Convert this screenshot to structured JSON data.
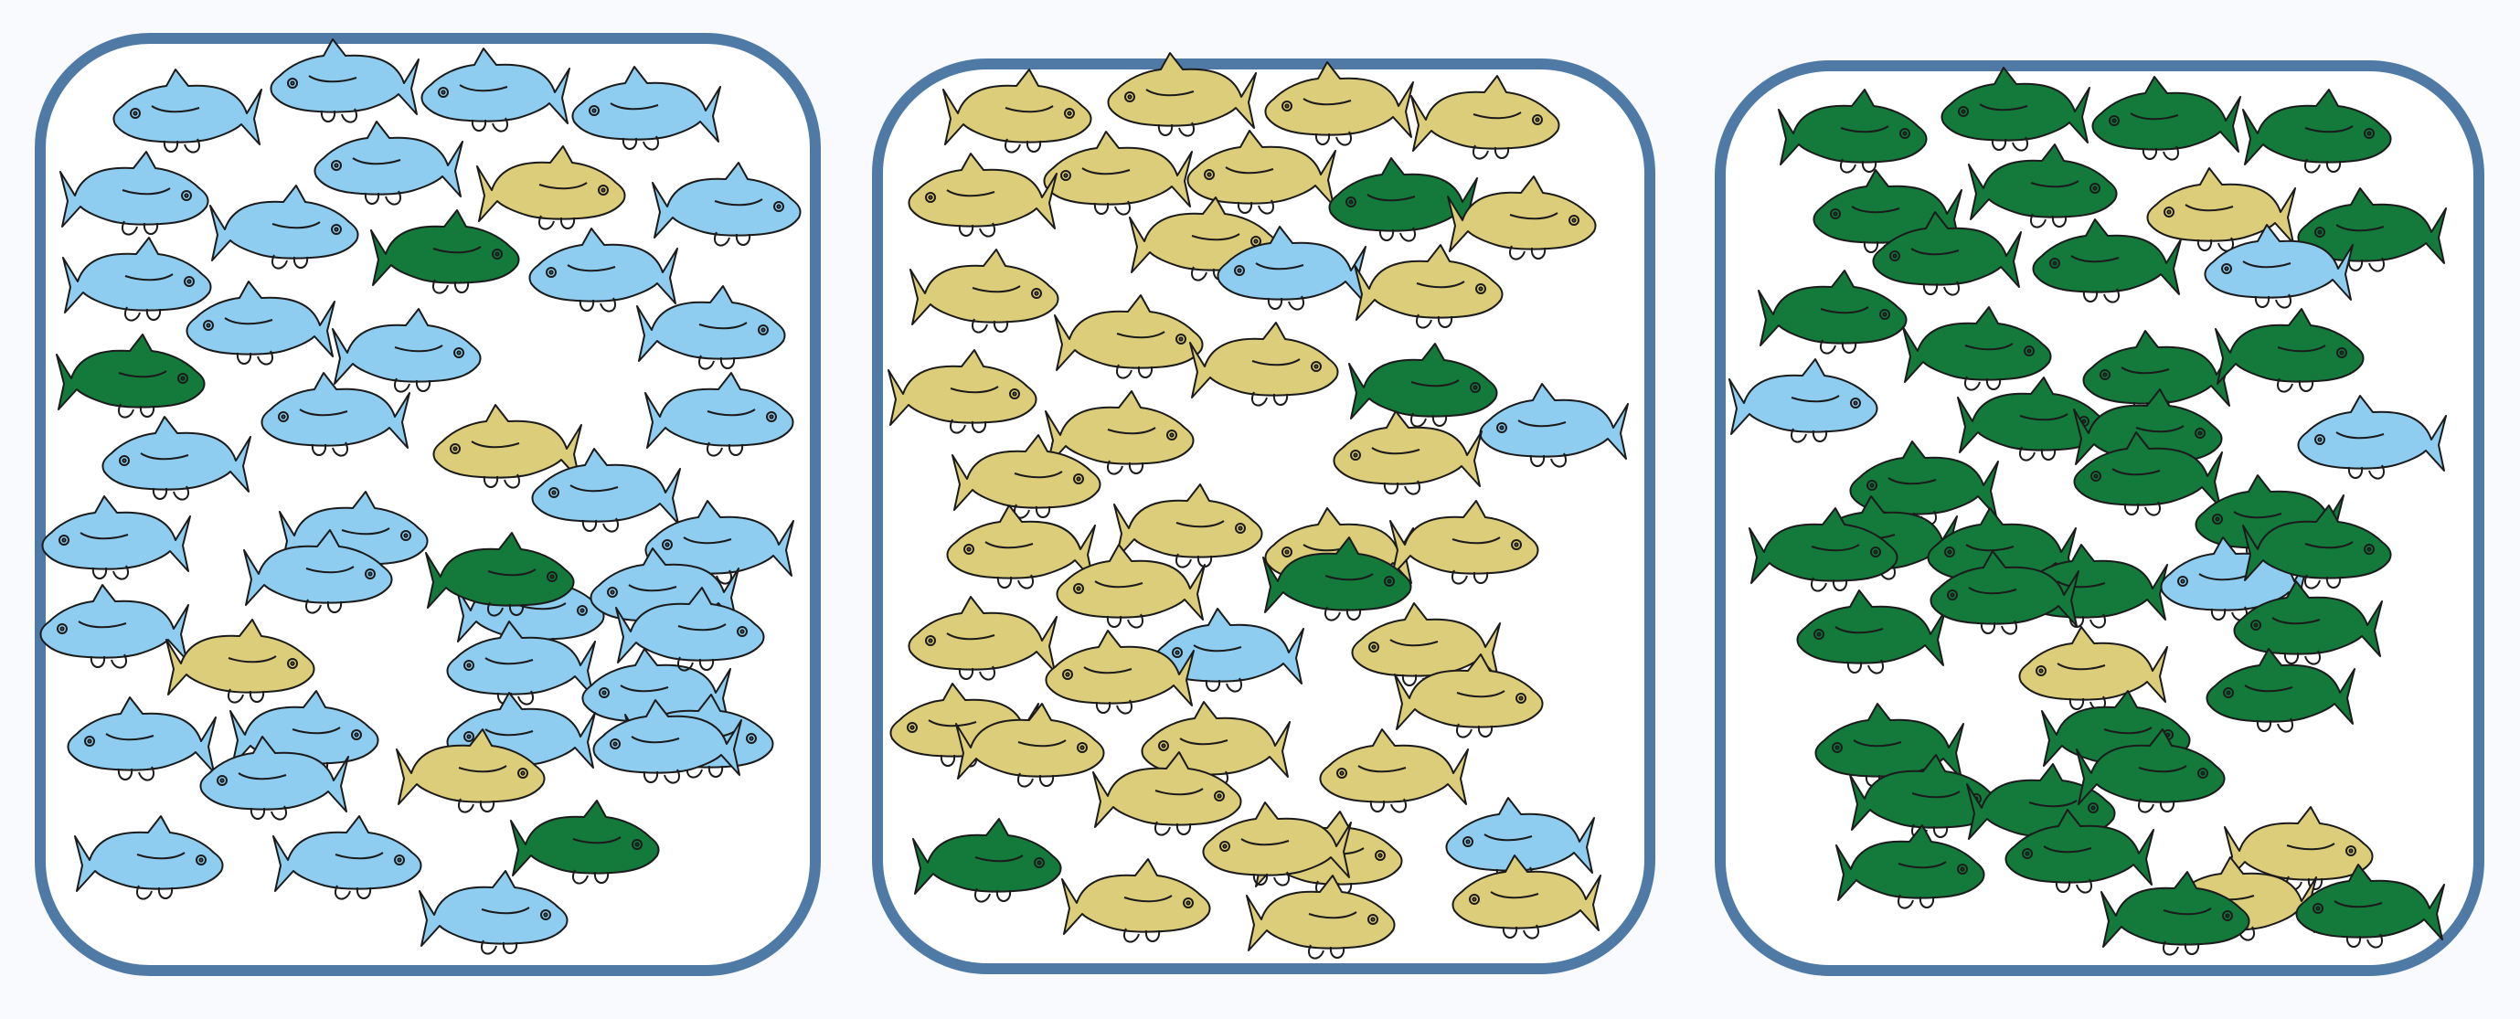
{
  "colors": {
    "blue": "#8ecdf0",
    "tan": "#dccd7a",
    "green": "#137a3c",
    "border": "#4f7aa6",
    "outline": "#1b1b1b",
    "panel_fill": "#ffffff"
  },
  "panels": [
    {
      "majority": "blue",
      "fish": [
        {
          "c": "blue",
          "d": "L"
        },
        {
          "c": "blue",
          "d": "L"
        },
        {
          "c": "blue",
          "d": "L"
        },
        {
          "c": "blue",
          "d": "L"
        },
        {
          "c": "blue",
          "d": "R"
        },
        {
          "c": "blue",
          "d": "L"
        },
        {
          "c": "tan",
          "d": "R"
        },
        {
          "c": "blue",
          "d": "R"
        },
        {
          "c": "blue",
          "d": "R"
        },
        {
          "c": "blue",
          "d": "R"
        },
        {
          "c": "green",
          "d": "R"
        },
        {
          "c": "blue",
          "d": "L"
        },
        {
          "c": "blue",
          "d": "L"
        },
        {
          "c": "blue",
          "d": "R"
        },
        {
          "c": "blue",
          "d": "R"
        },
        {
          "c": "green",
          "d": "R"
        },
        {
          "c": "blue",
          "d": "R"
        },
        {
          "c": "blue",
          "d": "L"
        },
        {
          "c": "blue",
          "d": "L"
        },
        {
          "c": "tan",
          "d": "L"
        },
        {
          "c": "blue",
          "d": "L"
        },
        {
          "c": "blue",
          "d": "L"
        },
        {
          "c": "blue",
          "d": "R"
        },
        {
          "c": "blue",
          "d": "L"
        },
        {
          "c": "blue",
          "d": "R"
        },
        {
          "c": "blue",
          "d": "R"
        },
        {
          "c": "green",
          "d": "R"
        },
        {
          "c": "blue",
          "d": "L"
        },
        {
          "c": "blue",
          "d": "L"
        },
        {
          "c": "tan",
          "d": "R"
        },
        {
          "c": "blue",
          "d": "L"
        },
        {
          "c": "blue",
          "d": "L"
        },
        {
          "c": "blue",
          "d": "R"
        },
        {
          "c": "blue",
          "d": "L"
        },
        {
          "c": "blue",
          "d": "R"
        },
        {
          "c": "blue",
          "d": "L"
        },
        {
          "c": "blue",
          "d": "R"
        },
        {
          "c": "blue",
          "d": "L"
        },
        {
          "c": "tan",
          "d": "R"
        },
        {
          "c": "blue",
          "d": "L"
        },
        {
          "c": "green",
          "d": "R"
        },
        {
          "c": "blue",
          "d": "R"
        },
        {
          "c": "blue",
          "d": "R"
        },
        {
          "c": "blue",
          "d": "R"
        }
      ]
    },
    {
      "majority": "tan",
      "fish": [
        {
          "c": "tan",
          "d": "R"
        },
        {
          "c": "tan",
          "d": "L"
        },
        {
          "c": "tan",
          "d": "L"
        },
        {
          "c": "tan",
          "d": "R"
        },
        {
          "c": "tan",
          "d": "L"
        },
        {
          "c": "tan",
          "d": "L"
        },
        {
          "c": "green",
          "d": "L"
        },
        {
          "c": "tan",
          "d": "R"
        },
        {
          "c": "tan",
          "d": "L"
        },
        {
          "c": "tan",
          "d": "R"
        },
        {
          "c": "blue",
          "d": "L"
        },
        {
          "c": "tan",
          "d": "R"
        },
        {
          "c": "tan",
          "d": "R"
        },
        {
          "c": "tan",
          "d": "R"
        },
        {
          "c": "tan",
          "d": "R"
        },
        {
          "c": "green",
          "d": "R"
        },
        {
          "c": "tan",
          "d": "R"
        },
        {
          "c": "tan",
          "d": "R"
        },
        {
          "c": "blue",
          "d": "L"
        },
        {
          "c": "tan",
          "d": "L"
        },
        {
          "c": "tan",
          "d": "R"
        },
        {
          "c": "tan",
          "d": "R"
        },
        {
          "c": "tan",
          "d": "L"
        },
        {
          "c": "tan",
          "d": "R"
        },
        {
          "c": "tan",
          "d": "L"
        },
        {
          "c": "green",
          "d": "R"
        },
        {
          "c": "tan",
          "d": "L"
        },
        {
          "c": "tan",
          "d": "L"
        },
        {
          "c": "tan",
          "d": "L"
        },
        {
          "c": "blue",
          "d": "L"
        },
        {
          "c": "tan",
          "d": "L"
        },
        {
          "c": "tan",
          "d": "L"
        },
        {
          "c": "tan",
          "d": "R"
        },
        {
          "c": "tan",
          "d": "L"
        },
        {
          "c": "tan",
          "d": "L"
        },
        {
          "c": "tan",
          "d": "R"
        },
        {
          "c": "tan",
          "d": "R"
        },
        {
          "c": "tan",
          "d": "R"
        },
        {
          "c": "green",
          "d": "R"
        },
        {
          "c": "tan",
          "d": "L"
        },
        {
          "c": "blue",
          "d": "L"
        },
        {
          "c": "tan",
          "d": "R"
        },
        {
          "c": "tan",
          "d": "R"
        },
        {
          "c": "tan",
          "d": "L"
        }
      ]
    },
    {
      "majority": "green",
      "fish": [
        {
          "c": "green",
          "d": "R"
        },
        {
          "c": "green",
          "d": "L"
        },
        {
          "c": "green",
          "d": "L"
        },
        {
          "c": "green",
          "d": "R"
        },
        {
          "c": "green",
          "d": "L"
        },
        {
          "c": "green",
          "d": "R"
        },
        {
          "c": "tan",
          "d": "L"
        },
        {
          "c": "green",
          "d": "L"
        },
        {
          "c": "green",
          "d": "L"
        },
        {
          "c": "green",
          "d": "L"
        },
        {
          "c": "blue",
          "d": "L"
        },
        {
          "c": "green",
          "d": "R"
        },
        {
          "c": "green",
          "d": "R"
        },
        {
          "c": "green",
          "d": "L"
        },
        {
          "c": "green",
          "d": "R"
        },
        {
          "c": "green",
          "d": "R"
        },
        {
          "c": "blue",
          "d": "R"
        },
        {
          "c": "green",
          "d": "L"
        },
        {
          "c": "green",
          "d": "R"
        },
        {
          "c": "blue",
          "d": "L"
        },
        {
          "c": "green",
          "d": "L"
        },
        {
          "c": "green",
          "d": "L"
        },
        {
          "c": "green",
          "d": "L"
        },
        {
          "c": "green",
          "d": "L"
        },
        {
          "c": "green",
          "d": "R"
        },
        {
          "c": "green",
          "d": "L"
        },
        {
          "c": "blue",
          "d": "L"
        },
        {
          "c": "green",
          "d": "R"
        },
        {
          "c": "green",
          "d": "L"
        },
        {
          "c": "green",
          "d": "L"
        },
        {
          "c": "tan",
          "d": "L"
        },
        {
          "c": "green",
          "d": "L"
        },
        {
          "c": "green",
          "d": "L"
        },
        {
          "c": "green",
          "d": "L"
        },
        {
          "c": "green",
          "d": "R"
        },
        {
          "c": "green",
          "d": "R"
        },
        {
          "c": "green",
          "d": "R"
        },
        {
          "c": "green",
          "d": "R"
        },
        {
          "c": "tan",
          "d": "R"
        },
        {
          "c": "green",
          "d": "L"
        },
        {
          "c": "tan",
          "d": "L"
        },
        {
          "c": "green",
          "d": "R"
        },
        {
          "c": "green",
          "d": "R"
        },
        {
          "c": "green",
          "d": "L"
        }
      ]
    }
  ]
}
